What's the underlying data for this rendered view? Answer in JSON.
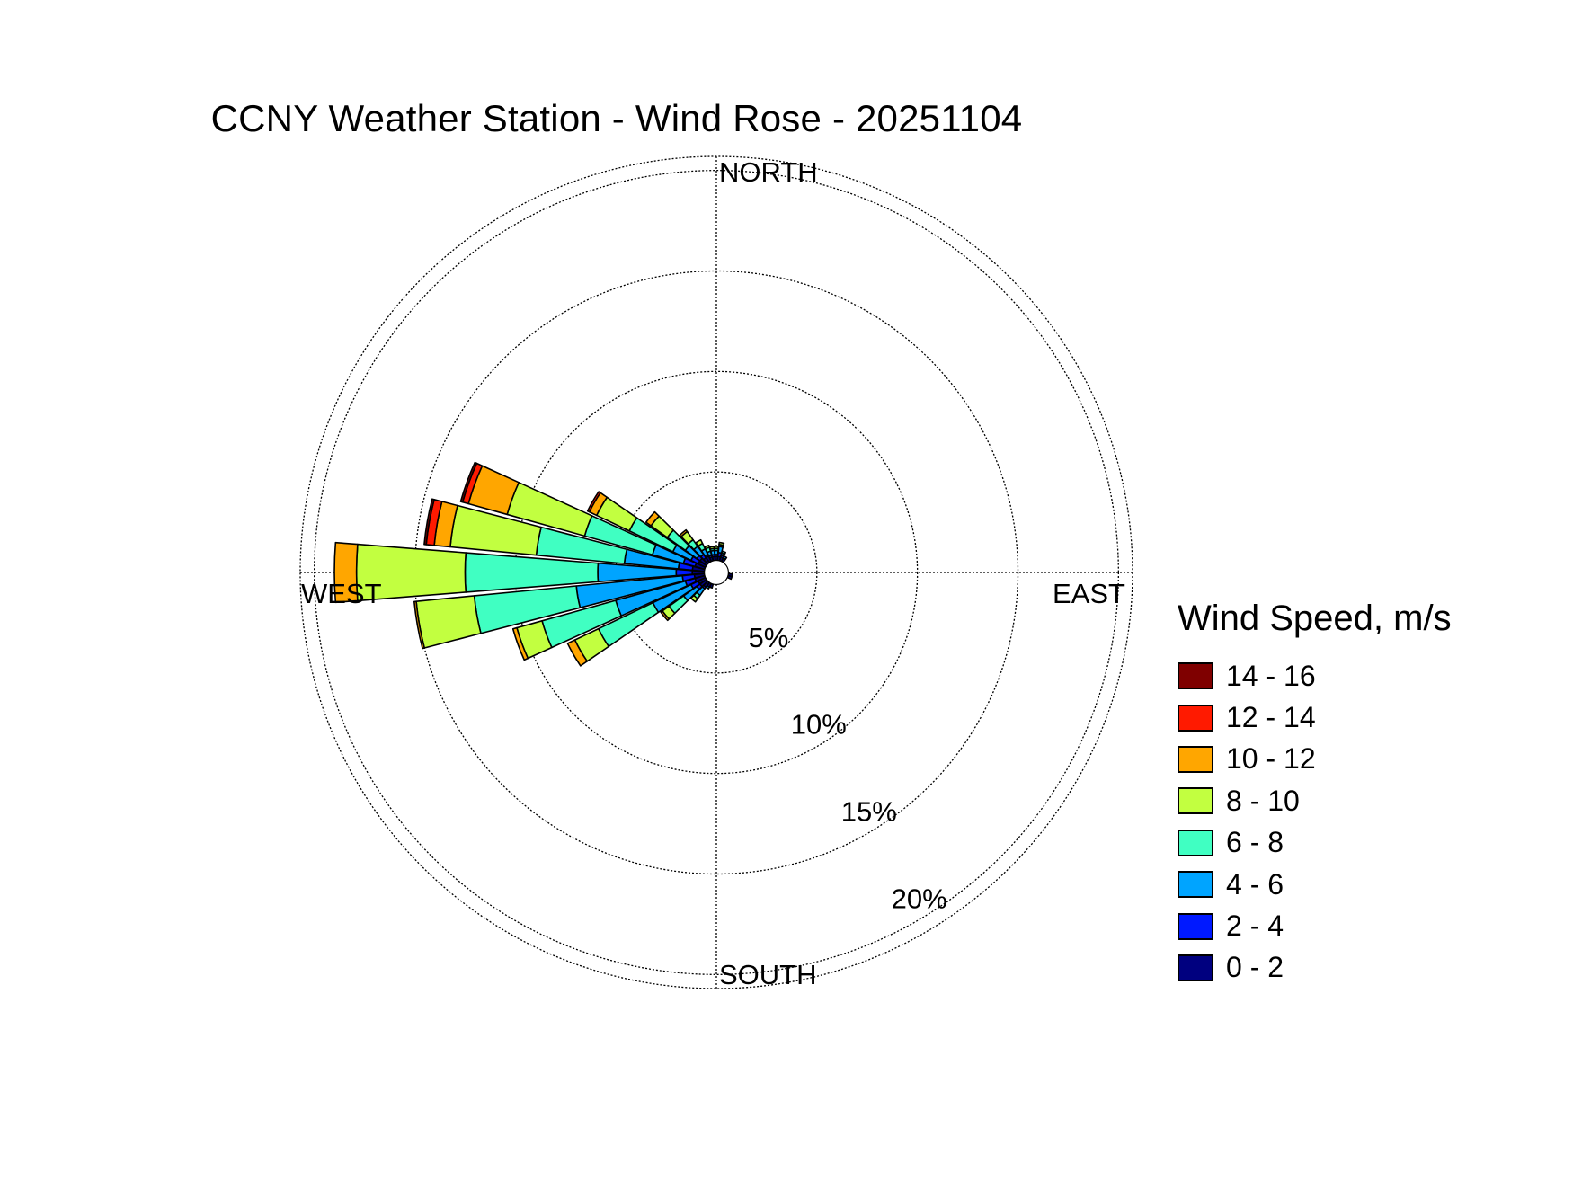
{
  "chart_data": {
    "type": "wind-rose",
    "title": "CCNY Weather Station - Wind Rose - 20251104",
    "directions": [
      "NORTH",
      "EAST",
      "SOUTH",
      "WEST"
    ],
    "radial_unit": "%",
    "radial_ticks": [
      {
        "value": 5,
        "label": "5%"
      },
      {
        "value": 10,
        "label": "10%"
      },
      {
        "value": 15,
        "label": "15%"
      },
      {
        "value": 20,
        "label": "20%"
      }
    ],
    "rmax": 20.7,
    "grid": true,
    "legend": {
      "title": "Wind Speed, m/s",
      "placement": "right"
    },
    "speed_bins": [
      {
        "label": "0 - 2",
        "color": "#00007f"
      },
      {
        "label": "2 - 4",
        "color": "#0019ff"
      },
      {
        "label": "4 - 6",
        "color": "#00a4ff"
      },
      {
        "label": "6 - 8",
        "color": "#40ffc2"
      },
      {
        "label": "8 - 10",
        "color": "#c2ff40"
      },
      {
        "label": "10 - 12",
        "color": "#ffa600"
      },
      {
        "label": "12 - 14",
        "color": "#ff1a00"
      },
      {
        "label": "14 - 16",
        "color": "#7f0000"
      }
    ],
    "sectors": [
      {
        "direction_deg": 0,
        "cumulative": [
          0.8,
          0.9,
          1.1,
          1.2,
          1.3,
          1.3,
          1.3,
          1.3
        ]
      },
      {
        "direction_deg": 10,
        "cumulative": [
          0.8,
          1.0,
          1.3,
          1.4,
          1.5,
          1.5,
          1.5,
          1.5
        ]
      },
      {
        "direction_deg": 20,
        "cumulative": [
          0.8,
          0.9,
          1.0,
          1.1,
          1.1,
          1.1,
          1.1,
          1.1
        ]
      },
      {
        "direction_deg": 30,
        "cumulative": [
          0.8,
          0.8,
          0.9,
          0.9,
          0.9,
          0.9,
          0.9,
          0.9
        ]
      },
      {
        "direction_deg": 100,
        "cumulative": [
          0.8,
          0.8,
          0.8,
          0.8,
          0.8,
          0.8,
          0.8,
          0.8
        ]
      },
      {
        "direction_deg": 110,
        "cumulative": [
          0.8,
          0.8,
          0.8,
          0.8,
          0.8,
          0.8,
          0.8,
          0.8
        ]
      },
      {
        "direction_deg": 200,
        "cumulative": [
          0.8,
          0.8,
          0.8,
          0.8,
          0.8,
          0.8,
          0.8,
          0.8
        ]
      },
      {
        "direction_deg": 210,
        "cumulative": [
          0.8,
          0.8,
          0.9,
          0.9,
          0.9,
          0.9,
          0.9,
          0.9
        ]
      },
      {
        "direction_deg": 220,
        "cumulative": [
          0.9,
          1.0,
          1.4,
          1.6,
          1.8,
          1.8,
          1.8,
          1.8
        ]
      },
      {
        "direction_deg": 230,
        "cumulative": [
          1.0,
          1.2,
          2.0,
          2.9,
          3.3,
          3.4,
          3.4,
          3.4
        ]
      },
      {
        "direction_deg": 240,
        "cumulative": [
          1.0,
          1.4,
          3.5,
          6.5,
          7.8,
          8.2,
          8.2,
          8.2
        ]
      },
      {
        "direction_deg": 250,
        "cumulative": [
          1.1,
          1.6,
          5.2,
          9.0,
          10.3,
          10.5,
          10.5,
          10.5
        ]
      },
      {
        "direction_deg": 260,
        "cumulative": [
          1.1,
          1.7,
          7.0,
          12.1,
          15.0,
          15.1,
          15.1,
          15.1
        ]
      },
      {
        "direction_deg": 270,
        "cumulative": [
          1.2,
          2.0,
          5.9,
          12.5,
          17.9,
          19.0,
          19.0,
          19.0
        ]
      },
      {
        "direction_deg": 280,
        "cumulative": [
          1.2,
          1.9,
          4.6,
          9.0,
          13.3,
          14.1,
          14.5,
          14.6
        ]
      },
      {
        "direction_deg": 290,
        "cumulative": [
          1.1,
          1.7,
          3.3,
          6.8,
          10.8,
          12.8,
          13.1,
          13.2
        ]
      },
      {
        "direction_deg": 300,
        "cumulative": [
          1.0,
          1.4,
          2.4,
          4.8,
          6.6,
          7.0,
          7.1,
          7.1
        ]
      },
      {
        "direction_deg": 310,
        "cumulative": [
          1.0,
          1.2,
          1.9,
          3.0,
          4.0,
          4.3,
          4.3,
          4.3
        ]
      },
      {
        "direction_deg": 320,
        "cumulative": [
          0.9,
          1.1,
          1.6,
          2.0,
          2.5,
          2.6,
          2.6,
          2.6
        ]
      },
      {
        "direction_deg": 330,
        "cumulative": [
          0.9,
          1.0,
          1.3,
          1.6,
          1.8,
          1.8,
          1.8,
          1.8
        ]
      },
      {
        "direction_deg": 340,
        "cumulative": [
          0.8,
          0.9,
          1.1,
          1.3,
          1.4,
          1.4,
          1.4,
          1.4
        ]
      },
      {
        "direction_deg": 350,
        "cumulative": [
          0.8,
          0.9,
          1.1,
          1.2,
          1.3,
          1.3,
          1.3,
          1.3
        ]
      }
    ],
    "calm_circle_radius": 0.6
  }
}
